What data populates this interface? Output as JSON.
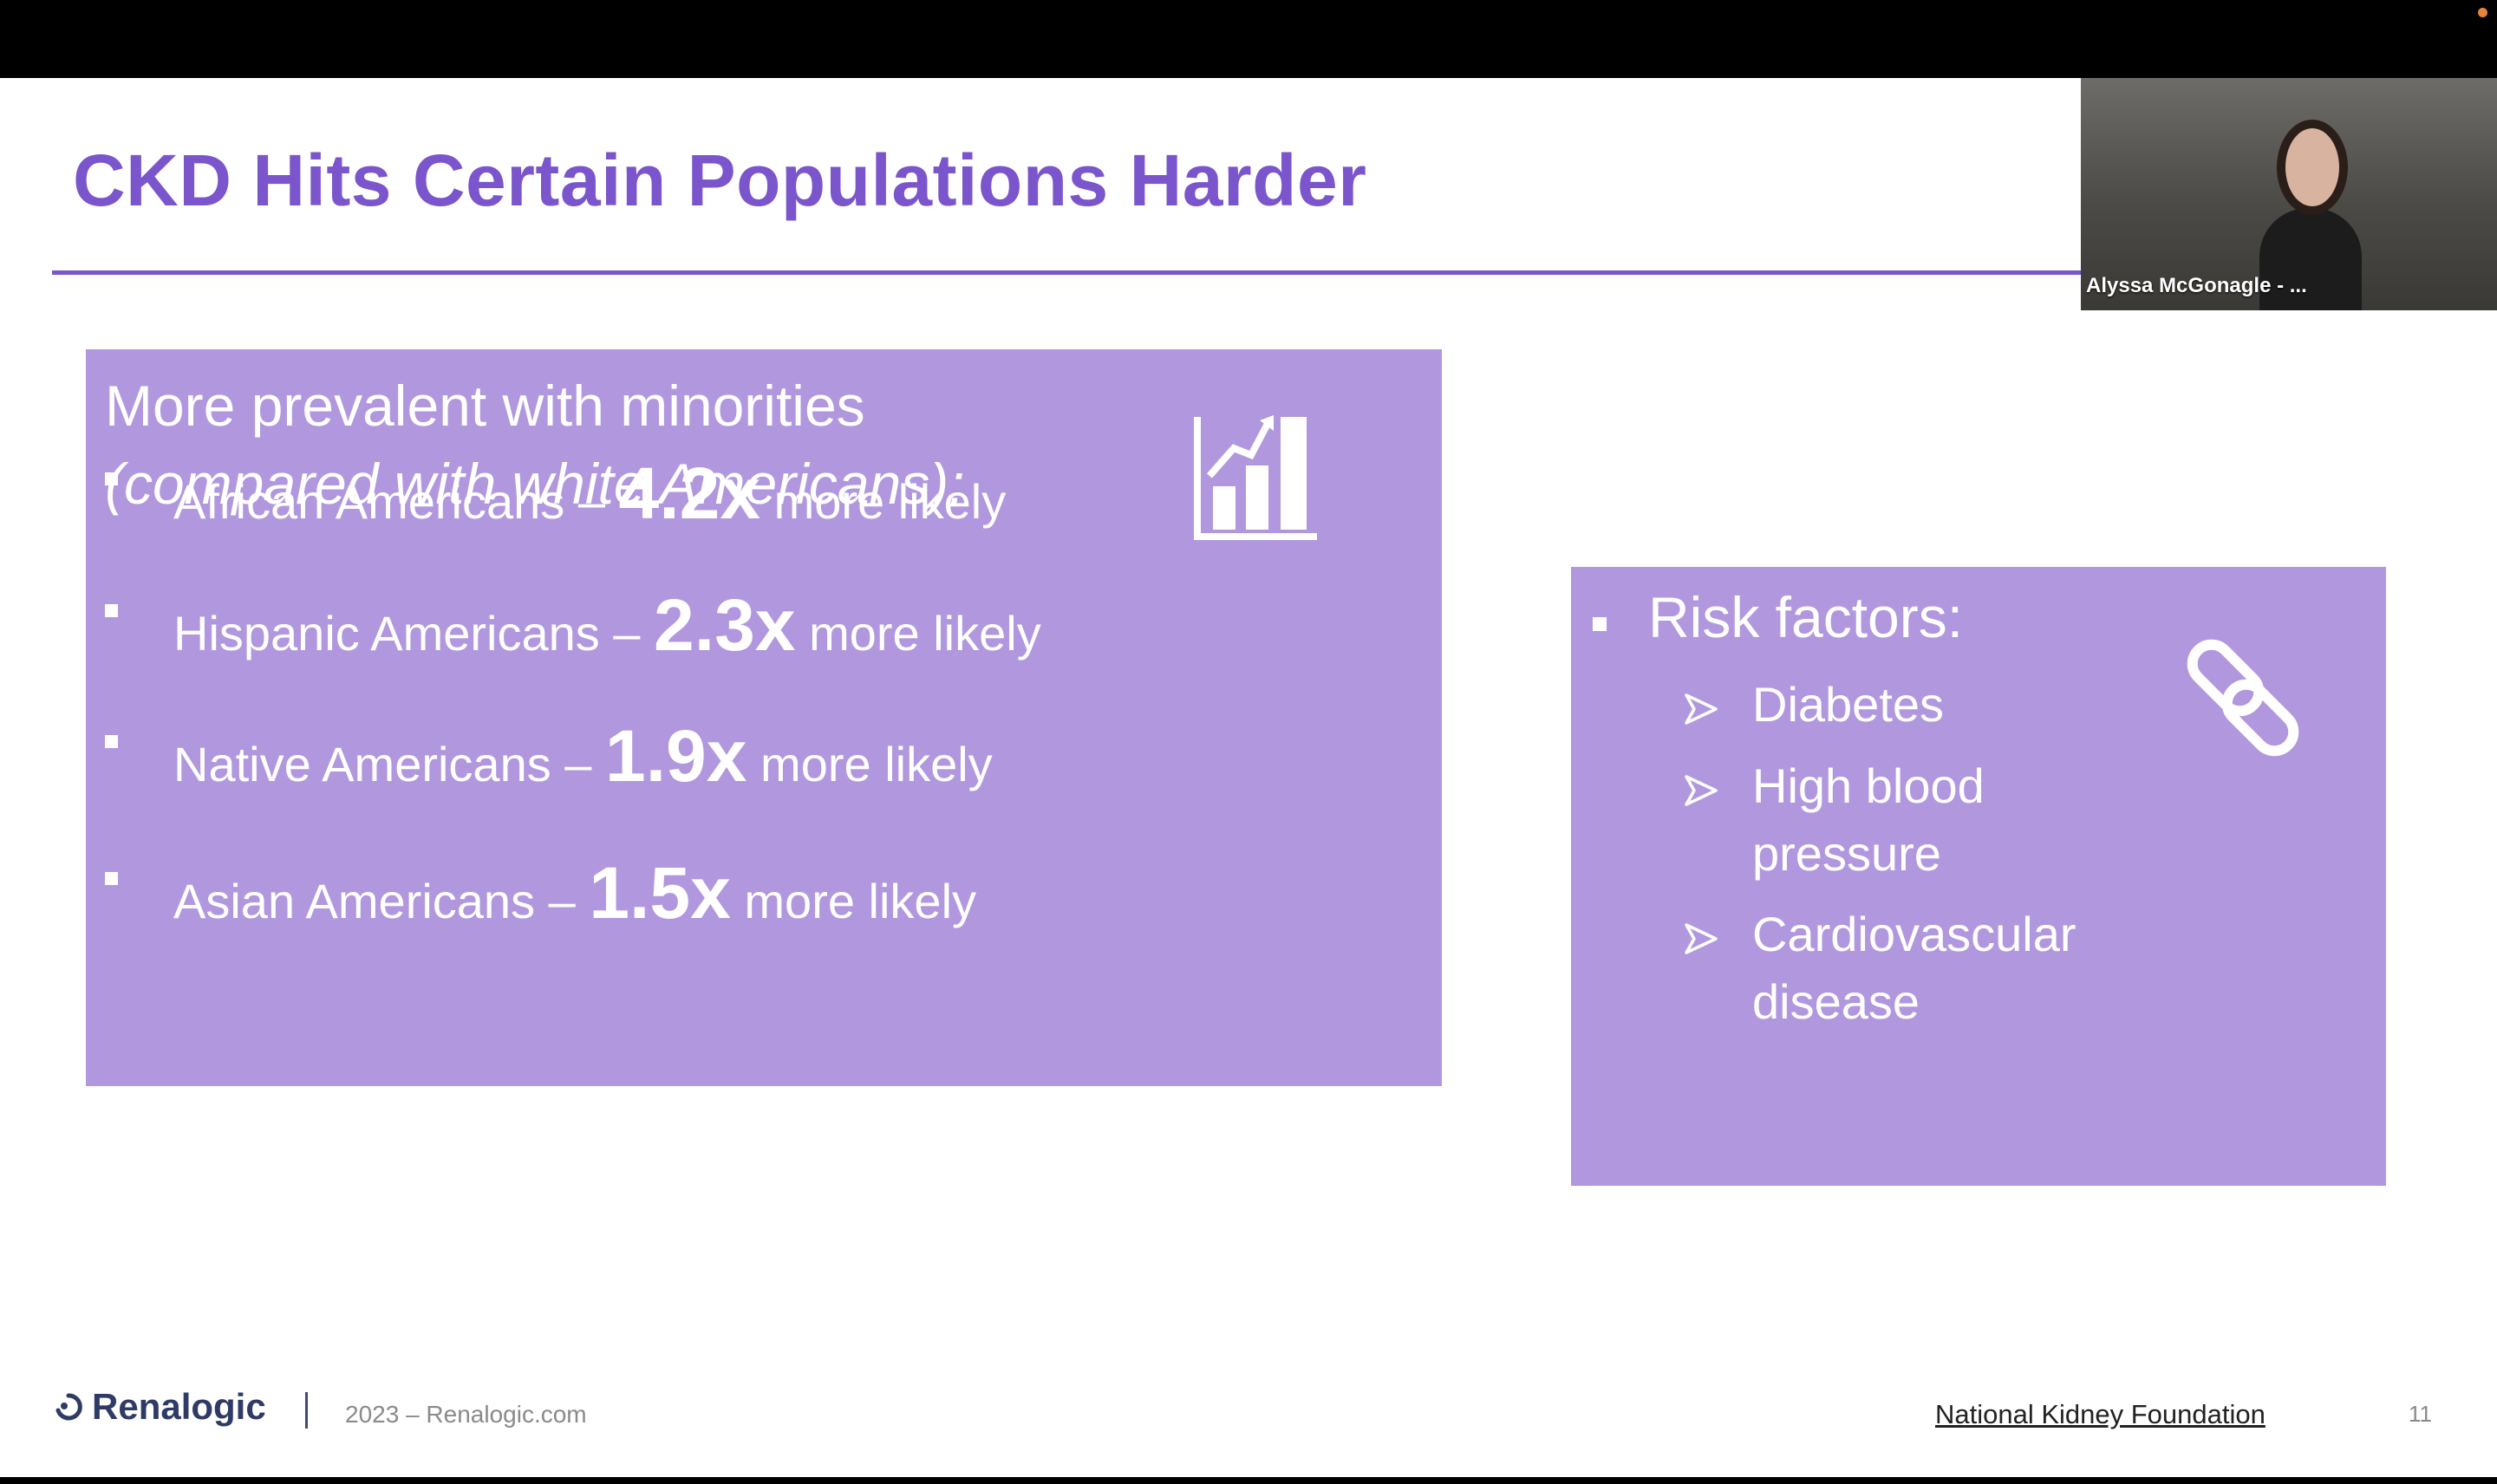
{
  "slide": {
    "title": "CKD Hits Certain Populations Harder",
    "left_box": {
      "heading_line1": "More prevalent with minorities",
      "heading_line2": "(compared with white Americans):",
      "icon": "bar-chart-growth-icon",
      "rows": [
        {
          "group": "African Americans – ",
          "multiplier": "4.2x",
          "suffix": " more likely"
        },
        {
          "group": "Hispanic Americans – ",
          "multiplier": "2.3x",
          "suffix": " more likely"
        },
        {
          "group": "Native Americans – ",
          "multiplier": "1.9x",
          "suffix": " more likely"
        },
        {
          "group": "Asian Americans – ",
          "multiplier": "1.5x",
          "suffix": " more likely"
        }
      ]
    },
    "right_box": {
      "heading": "Risk factors:",
      "icon": "chain-link-icon",
      "items": [
        "Diabetes",
        "High blood pressure",
        "Cardiovascular disease"
      ]
    },
    "footer": {
      "logo_text": "Renalogic",
      "copyright": "2023 – Renalogic.com",
      "link_text": "National Kidney Foundation",
      "page_number": "11"
    }
  },
  "video": {
    "participant_name": "Alyssa McGonagle - ..."
  },
  "colors": {
    "title_purple": "#7a55cc",
    "box_lavender": "#b198de",
    "logo_navy": "#2f3b66"
  }
}
